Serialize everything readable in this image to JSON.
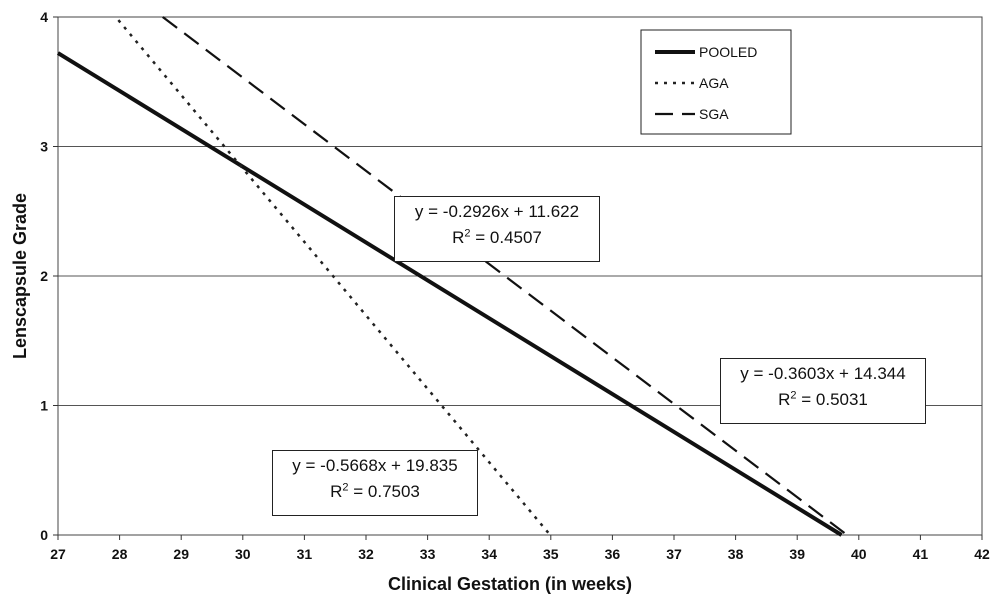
{
  "chart_data": {
    "type": "line",
    "title": "",
    "xlabel": "Clinical Gestation (in weeks)",
    "ylabel": "Lenscapsule Grade",
    "xlim": [
      27,
      42
    ],
    "ylim": [
      0,
      4
    ],
    "x_ticks": [
      27,
      28,
      29,
      30,
      31,
      32,
      33,
      34,
      35,
      36,
      37,
      38,
      39,
      40,
      41,
      42
    ],
    "y_ticks": [
      0,
      1,
      2,
      3,
      4
    ],
    "grid": "horizontal",
    "legend_position": "top-right",
    "series": [
      {
        "name": "POOLED",
        "style": "solid",
        "color": "#111111",
        "slope": -0.2926,
        "intercept": 11.622,
        "x": [
          27,
          39.72
        ],
        "y": [
          3.7218,
          0.0
        ],
        "equation": "y = -0.2926x + 11.622",
        "r2_label": "R",
        "r2_sup": "2",
        "r2_value": " = 0.4507"
      },
      {
        "name": "AGA",
        "style": "dotted",
        "color": "#222222",
        "slope": -0.5668,
        "intercept": 19.835,
        "x": [
          27.98,
          34.99
        ],
        "y": [
          3.976,
          0.0
        ],
        "equation": "y = -0.5668x + 19.835",
        "r2_label": "R",
        "r2_sup": "2",
        "r2_value": " = 0.7503"
      },
      {
        "name": "SGA",
        "style": "dashed",
        "color": "#111111",
        "slope": -0.3603,
        "intercept": 14.344,
        "x": [
          28.7,
          39.81
        ],
        "y": [
          4.0,
          0.0
        ],
        "equation": "y = -0.3603x + 14.344",
        "r2_label": "R",
        "r2_sup": "2",
        "r2_value": " = 0.5031"
      }
    ]
  }
}
